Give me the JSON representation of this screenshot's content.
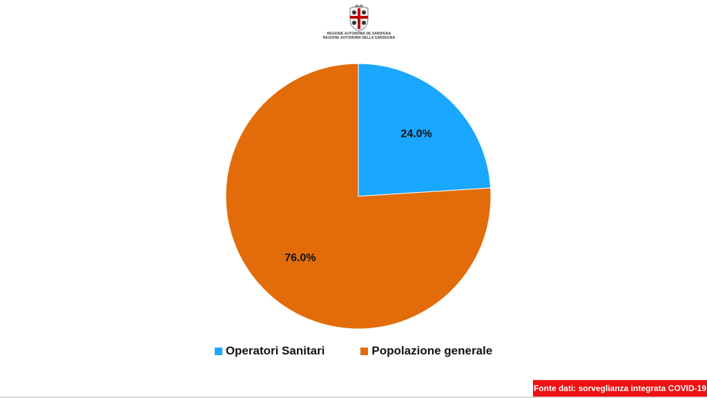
{
  "logo": {
    "line1": "REGIONE AUTONOMA DE SARDIGNA",
    "line2": "REGIONE AUTONOMA DELLA SARDEGNA",
    "icon": "sardinia-coat-of-arms-icon"
  },
  "chart_data": {
    "type": "pie",
    "categories": [
      "Operatori Sanitari",
      "Popolazione generale"
    ],
    "values": [
      24.0,
      76.0
    ],
    "data_labels": [
      "24.0%",
      "76.0%"
    ],
    "colors": [
      "#1aa7ff",
      "#e36c0a"
    ],
    "start_angle": "12 o'clock, clockwise",
    "legend_position": "bottom"
  },
  "source": {
    "text": "Fonte dati: sorveglianza integrata COVID-19",
    "background": "#ee1111"
  },
  "bottom_rule_color": "#d9d9d9"
}
